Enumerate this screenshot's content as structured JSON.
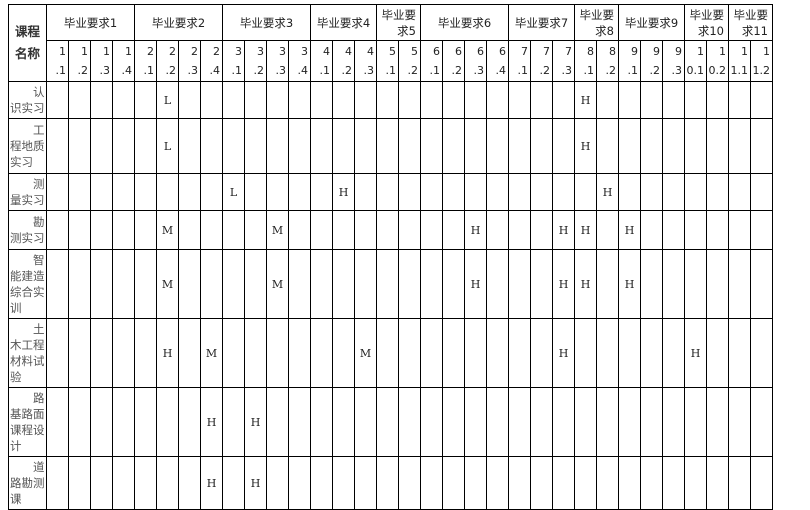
{
  "corner_label": [
    "课程",
    "名称"
  ],
  "requirements": [
    {
      "label": "毕业要求1",
      "subs": [
        "1.1",
        "1.2",
        "1.3",
        "1.4"
      ]
    },
    {
      "label": "毕业要求2",
      "subs": [
        "2.1",
        "2.2",
        "2.3",
        "2.4"
      ]
    },
    {
      "label": "毕业要求3",
      "subs": [
        "3.1",
        "3.2",
        "3.3",
        "3.4"
      ]
    },
    {
      "label": "毕业要求4",
      "subs": [
        "4.1",
        "4.2",
        "4.3"
      ]
    },
    {
      "label": "毕业要求5",
      "subs": [
        "5.1",
        "5.2"
      ]
    },
    {
      "label": "毕业要求6",
      "subs": [
        "6.1",
        "6.2",
        "6.3",
        "6.4"
      ]
    },
    {
      "label": "毕业要求7",
      "subs": [
        "7.1",
        "7.2",
        "7.3"
      ]
    },
    {
      "label": "毕业要求8",
      "subs": [
        "8.1",
        "8.2"
      ]
    },
    {
      "label": "毕业要求9",
      "subs": [
        "9.1",
        "9.2",
        "9.3"
      ]
    },
    {
      "label": "毕业要求10",
      "subs": [
        "10.1",
        "10.2"
      ]
    },
    {
      "label": "毕业要求11",
      "subs": [
        "11.1",
        "11.2"
      ]
    }
  ],
  "courses": [
    {
      "name": "认识实习",
      "marks": {
        "2.2": "L",
        "8.1": "H"
      }
    },
    {
      "name": "工程地质实习",
      "marks": {
        "2.2": "L",
        "8.1": "H"
      }
    },
    {
      "name": "测量实习",
      "marks": {
        "3.1": "L",
        "4.2": "H",
        "8.2": "H"
      }
    },
    {
      "name": "勘测实习",
      "marks": {
        "2.2": "M",
        "3.3": "M",
        "6.3": "H",
        "7.3": "H",
        "8.1": "H",
        "9.1": "H"
      }
    },
    {
      "name": "智能建造综合实训",
      "marks": {
        "2.2": "M",
        "3.3": "M",
        "6.3": "H",
        "7.3": "H",
        "8.1": "H",
        "9.1": "H"
      }
    },
    {
      "name": "土木工程材料试验",
      "marks": {
        "2.2": "H",
        "2.4": "M",
        "4.3": "M",
        "7.3": "H",
        "10.1": "H"
      }
    },
    {
      "name": "路基路面课程设计",
      "marks": {
        "2.4": "H",
        "3.2": "H"
      }
    },
    {
      "name": "道路勘测课",
      "marks": {
        "2.4": "H",
        "3.2": "H"
      }
    }
  ]
}
